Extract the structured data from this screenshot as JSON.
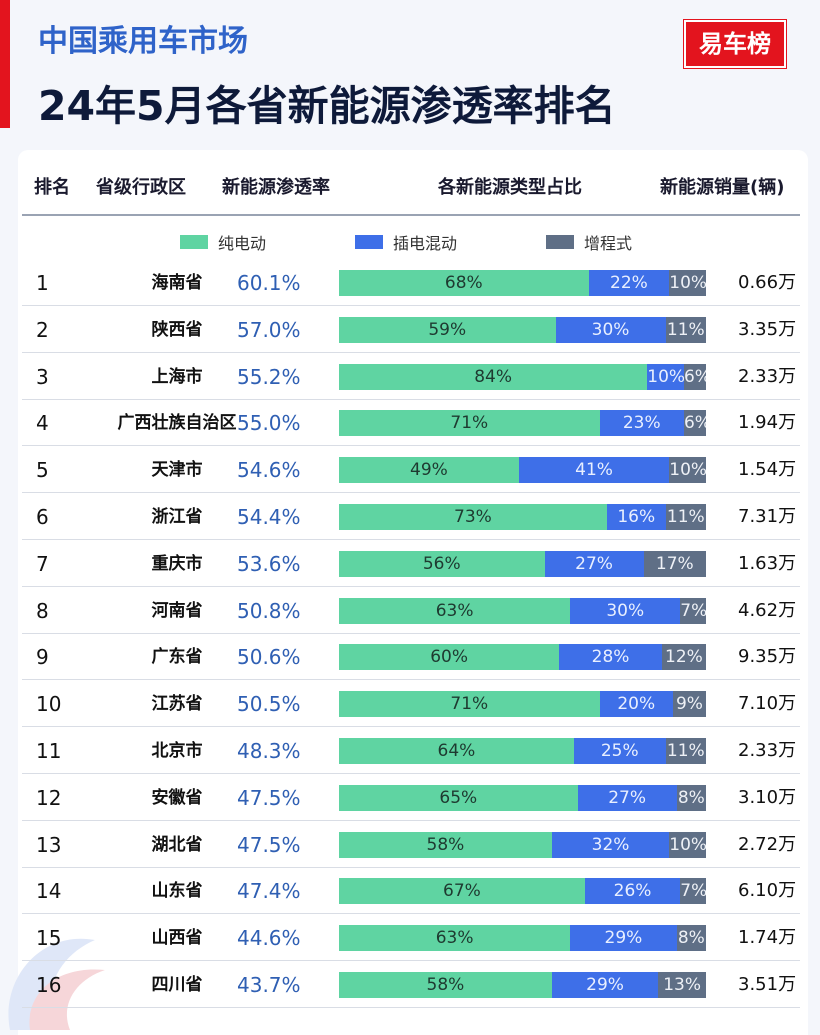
{
  "header": {
    "subtitle": "中国乘用车市场",
    "title": "24年5月各省新能源渗透率排名",
    "logo_text": "易车榜"
  },
  "columns": {
    "rank": "排名",
    "province": "省级行政区",
    "rate": "新能源渗透率",
    "share": "各新能源类型占比",
    "sales": "新能源销量(辆)"
  },
  "colors": {
    "bev": "#5fd4a2",
    "phev": "#3e6fe8",
    "erev": "#5f6f86",
    "rate_text": "#2f5fb3",
    "brand_red": "#e3141e"
  },
  "chart_data": {
    "type": "bar",
    "orientation": "horizontal",
    "stacked": true,
    "series": [
      {
        "name": "纯电动",
        "values": [
          68,
          59,
          84,
          71,
          49,
          73,
          56,
          63,
          60,
          71,
          64,
          65,
          58,
          67,
          63,
          58
        ]
      },
      {
        "name": "插电混动",
        "values": [
          22,
          30,
          10,
          23,
          41,
          16,
          27,
          30,
          28,
          20,
          25,
          27,
          32,
          26,
          29,
          29
        ]
      },
      {
        "name": "增程式",
        "values": [
          10,
          11,
          6,
          6,
          10,
          11,
          17,
          7,
          12,
          9,
          11,
          8,
          10,
          7,
          8,
          13
        ]
      }
    ],
    "rows": [
      {
        "rank": "1",
        "province": "海南省",
        "rate": "60.1%",
        "sales": "0.66万"
      },
      {
        "rank": "2",
        "province": "陕西省",
        "rate": "57.0%",
        "sales": "3.35万"
      },
      {
        "rank": "3",
        "province": "上海市",
        "rate": "55.2%",
        "sales": "2.33万"
      },
      {
        "rank": "4",
        "province": "广西壮族自治区",
        "rate": "55.0%",
        "sales": "1.94万"
      },
      {
        "rank": "5",
        "province": "天津市",
        "rate": "54.6%",
        "sales": "1.54万"
      },
      {
        "rank": "6",
        "province": "浙江省",
        "rate": "54.4%",
        "sales": "7.31万"
      },
      {
        "rank": "7",
        "province": "重庆市",
        "rate": "53.6%",
        "sales": "1.63万"
      },
      {
        "rank": "8",
        "province": "河南省",
        "rate": "50.8%",
        "sales": "4.62万"
      },
      {
        "rank": "9",
        "province": "广东省",
        "rate": "50.6%",
        "sales": "9.35万"
      },
      {
        "rank": "10",
        "province": "江苏省",
        "rate": "50.5%",
        "sales": "7.10万"
      },
      {
        "rank": "11",
        "province": "北京市",
        "rate": "48.3%",
        "sales": "2.33万"
      },
      {
        "rank": "12",
        "province": "安徽省",
        "rate": "47.5%",
        "sales": "3.10万"
      },
      {
        "rank": "13",
        "province": "湖北省",
        "rate": "47.5%",
        "sales": "2.72万"
      },
      {
        "rank": "14",
        "province": "山东省",
        "rate": "47.4%",
        "sales": "6.10万"
      },
      {
        "rank": "15",
        "province": "山西省",
        "rate": "44.6%",
        "sales": "1.74万"
      },
      {
        "rank": "16",
        "province": "四川省",
        "rate": "43.7%",
        "sales": "3.51万"
      }
    ],
    "value_format": "{v}%",
    "xlim": [
      0,
      100
    ],
    "legend": "top"
  }
}
